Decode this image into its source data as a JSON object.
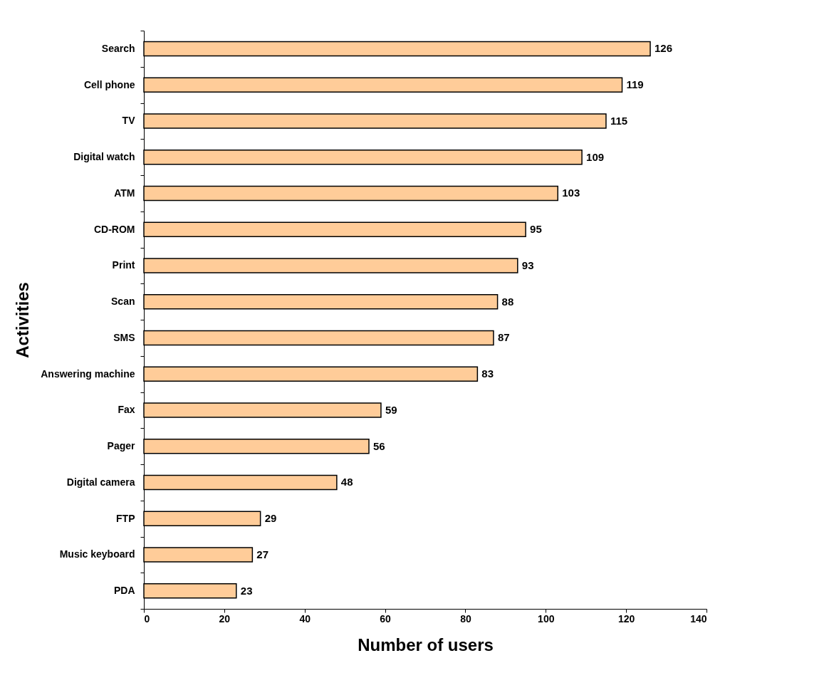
{
  "chart_data": {
    "type": "bar",
    "orientation": "horizontal",
    "xlabel": "Number of users",
    "ylabel": "Activities",
    "categories": [
      "Search",
      "Cell phone",
      "TV",
      "Digital watch",
      "ATM",
      "CD-ROM",
      "Print",
      "Scan",
      "SMS",
      "Answering machine",
      "Fax",
      "Pager",
      "Digital camera",
      "FTP",
      "Music keyboard",
      "PDA"
    ],
    "values": [
      126,
      119,
      115,
      109,
      103,
      95,
      93,
      88,
      87,
      83,
      59,
      56,
      48,
      29,
      27,
      23
    ],
    "color": "#ffcc99",
    "xlim": [
      0,
      140
    ],
    "xticks": [
      0,
      20,
      40,
      60,
      80,
      100,
      120,
      140
    ],
    "data_labels": true
  }
}
